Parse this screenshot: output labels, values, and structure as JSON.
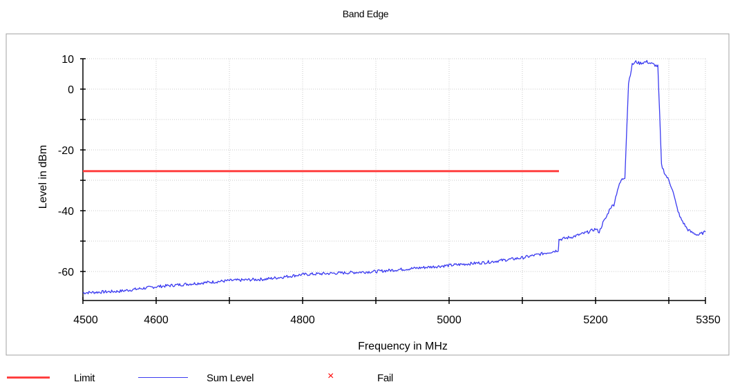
{
  "chart_data": {
    "type": "line",
    "title": "Band Edge",
    "xlabel": "Frequency in MHz",
    "ylabel": "Level in dBm",
    "xlim": [
      4500,
      5350
    ],
    "ylim": [
      -70,
      10
    ],
    "x_ticks": [
      4500,
      4600,
      4800,
      5000,
      5200,
      5350
    ],
    "y_ticks": [
      10,
      0,
      -20,
      -40,
      -60
    ],
    "grid": true,
    "legend_position": "bottom",
    "series": [
      {
        "name": "Limit",
        "color": "#ff4040",
        "x": [
          4500,
          5150
        ],
        "y": [
          -27,
          -27
        ]
      },
      {
        "name": "Sum Level",
        "color": "#3a3af0",
        "x": [
          4500,
          4550,
          4600,
          4650,
          4700,
          4750,
          4800,
          4850,
          4900,
          4950,
          5000,
          5050,
          5100,
          5140,
          5149,
          5150,
          5170,
          5190,
          5200,
          5205,
          5210,
          5215,
          5220,
          5225,
          5230,
          5235,
          5240,
          5245,
          5250,
          5255,
          5260,
          5270,
          5280,
          5285,
          5290,
          5295,
          5300,
          5305,
          5310,
          5315,
          5320,
          5325,
          5330,
          5340,
          5350
        ],
        "y": [
          -67,
          -66.5,
          -65,
          -64,
          -63,
          -62.5,
          -61,
          -60.5,
          -60,
          -59,
          -58,
          -57,
          -55.5,
          -53.5,
          -53,
          -49.5,
          -48.5,
          -47,
          -46,
          -47,
          -44,
          -42,
          -39,
          -38,
          -33,
          -30,
          -29,
          2,
          8,
          9,
          8.5,
          9,
          8,
          7.5,
          -25,
          -28,
          -30,
          -33,
          -38,
          -42,
          -44,
          -46,
          -47,
          -48,
          -47
        ]
      }
    ]
  },
  "legend": [
    {
      "name": "Limit",
      "symbol": "line",
      "color": "#ff4040"
    },
    {
      "name": "Sum Level",
      "symbol": "line",
      "color": "#3a3af0"
    },
    {
      "name": "Fail",
      "symbol": "×",
      "color": "#ff0000"
    }
  ]
}
